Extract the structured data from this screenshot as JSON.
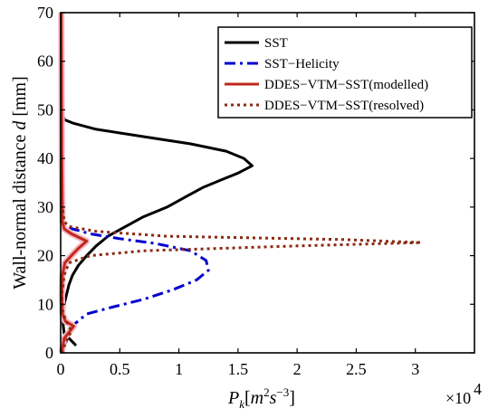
{
  "chart_data": {
    "type": "line",
    "xlabel": "P_k[m^2 s^-3]",
    "ylabel": "Wall-normal distance d [mm]",
    "xlim": [
      0,
      35000
    ],
    "ylim": [
      0,
      70
    ],
    "x_ticks": [
      0,
      5000,
      10000,
      15000,
      20000,
      25000,
      30000
    ],
    "x_tick_labels": [
      "0",
      "0.5",
      "1",
      "1.5",
      "2",
      "2.5",
      "3"
    ],
    "y_ticks": [
      0,
      10,
      20,
      30,
      40,
      50,
      60,
      70
    ],
    "y_tick_labels": [
      "0",
      "10",
      "20",
      "30",
      "40",
      "50",
      "60",
      "70"
    ],
    "x_multiplier": "×10",
    "x_multiplier_exp": "4",
    "grid": false,
    "legend_position": "top-right",
    "series": [
      {
        "name": "SST",
        "color": "#000000",
        "style": "solid",
        "points": [
          [
            1300,
            1.5
          ],
          [
            900,
            2.5
          ],
          [
            300,
            4
          ],
          [
            200,
            6
          ],
          [
            250,
            8
          ],
          [
            300,
            10
          ],
          [
            500,
            12
          ],
          [
            700,
            14
          ],
          [
            1000,
            16
          ],
          [
            1500,
            18
          ],
          [
            2200,
            20
          ],
          [
            3000,
            22
          ],
          [
            4000,
            24
          ],
          [
            5500,
            26
          ],
          [
            7000,
            28
          ],
          [
            9000,
            30
          ],
          [
            10500,
            32
          ],
          [
            12000,
            34
          ],
          [
            13500,
            35.5
          ],
          [
            15000,
            37
          ],
          [
            16200,
            38.5
          ],
          [
            15500,
            40
          ],
          [
            14000,
            41.5
          ],
          [
            11000,
            43
          ],
          [
            7000,
            44.5
          ],
          [
            3000,
            46
          ],
          [
            1000,
            47.3
          ],
          [
            300,
            48
          ],
          [
            200,
            49
          ],
          [
            150,
            50
          ]
        ]
      },
      {
        "name": "SST−Helicity",
        "color": "#0000d0",
        "style": "dashdot",
        "points": [
          [
            150,
            0.5
          ],
          [
            500,
            2.5
          ],
          [
            700,
            4
          ],
          [
            1200,
            6
          ],
          [
            2200,
            8
          ],
          [
            4500,
            9.5
          ],
          [
            7000,
            11
          ],
          [
            9500,
            13
          ],
          [
            11500,
            15
          ],
          [
            12500,
            17
          ],
          [
            12300,
            19
          ],
          [
            11000,
            21
          ],
          [
            8000,
            22.5
          ],
          [
            5000,
            23.5
          ],
          [
            2500,
            24.5
          ],
          [
            1000,
            25.5
          ],
          [
            300,
            26.5
          ],
          [
            100,
            28
          ]
        ]
      },
      {
        "name": "DDES−VTM−SST(modelled)",
        "color": "#c0281e",
        "style": "solid",
        "points": [
          [
            100,
            0
          ],
          [
            200,
            1.5
          ],
          [
            300,
            3
          ],
          [
            800,
            4.5
          ],
          [
            1100,
            5.5
          ],
          [
            400,
            6.5
          ],
          [
            150,
            8
          ],
          [
            100,
            12
          ],
          [
            150,
            16
          ],
          [
            350,
            18.5
          ],
          [
            900,
            20
          ],
          [
            1500,
            21.5
          ],
          [
            2200,
            23
          ],
          [
            900,
            24.5
          ],
          [
            300,
            25.5
          ],
          [
            150,
            27
          ],
          [
            100,
            40
          ],
          [
            50,
            70
          ]
        ]
      },
      {
        "name": "DDES−VTM−SST(resolved)",
        "color": "#8b2a12",
        "style": "dotted",
        "points": [
          [
            100,
            0
          ],
          [
            400,
            2
          ],
          [
            700,
            3.5
          ],
          [
            900,
            4.5
          ],
          [
            600,
            6
          ],
          [
            200,
            8
          ],
          [
            100,
            12
          ],
          [
            300,
            16
          ],
          [
            700,
            18.5
          ],
          [
            2500,
            20
          ],
          [
            7000,
            21
          ],
          [
            20000,
            22
          ],
          [
            30500,
            22.7
          ],
          [
            24000,
            23.3
          ],
          [
            9000,
            24
          ],
          [
            3000,
            25
          ],
          [
            700,
            26
          ],
          [
            300,
            27
          ],
          [
            150,
            30
          ]
        ]
      }
    ]
  }
}
